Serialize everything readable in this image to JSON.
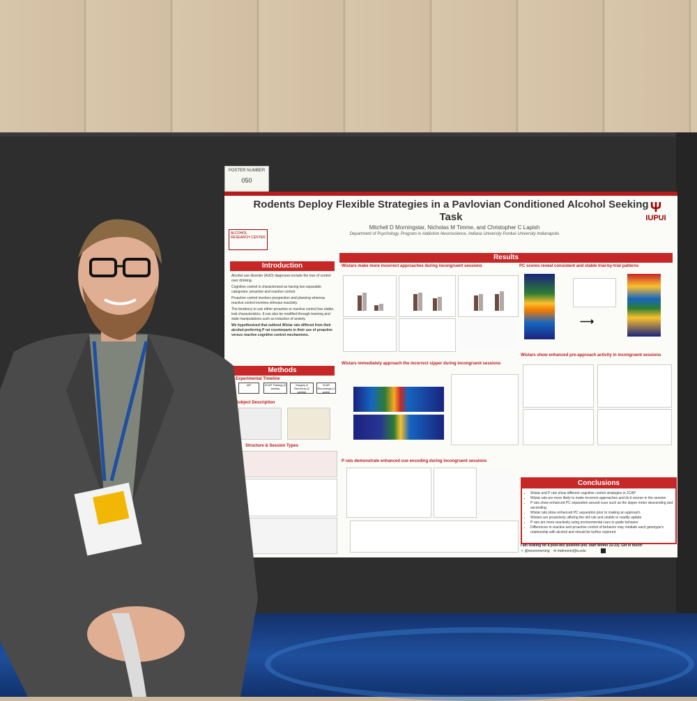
{
  "poster_number": {
    "label": "POSTER NUMBER",
    "value": "050"
  },
  "poster": {
    "title": "Rodents Deploy Flexible Strategies in a Pavlovian Conditioned Alcohol Seeking Task",
    "authors": "Mitchell D Morningstar, Nicholas M Timme, and Christopher C Lapish",
    "department": "Department of Psychology, Program in Addiction Neuroscience, Indiana University Purdue University Indianapolis",
    "logo_right": "IUPUI",
    "logo_left": "ALCOHOL RESEARCH CENTER",
    "sections": {
      "introduction": "Introduction",
      "methods": "Methods",
      "results": "Results",
      "conclusions": "Conclusions"
    },
    "intro_bullets": [
      "Alcohol use disorder (AUD) diagnoses include the loss of control over drinking.",
      "Cognitive control is characterized as having two separable categories: proactive and reactive control.",
      "Proactive control involves prospection and planning whereas reactive control involves stimulus reactivity.",
      "The tendency to use either proactive or reactive control has stable, trait characteristics. It can also be modified through learning and state manipulations such as induction of anxiety.",
      "We hypothesized that outbred Wistar rats differed from their alcohol-preferring P rat counterparts in their use of proactive versus reactive cognitive control mechanisms."
    ],
    "results_headings": [
      "Wistars make more incorrect approaches during incongruent sessions",
      "Wistars immediately approach the incorrect sipper during incongruent sessions",
      "P rats demonstrate enhanced cue encoding during incongruent sessions",
      "PC scores reveal consistent and stable trial-by-trial patterns",
      "Wistars show enhanced pre-approach activity in incongruent sessions"
    ],
    "methods_labels": {
      "timeline": "Experimental Timeline",
      "subject": "Subject Description",
      "structure": "Structure & Session Types",
      "steps": [
        "IAP",
        "2CAP Training (3 weeks)",
        "Surgery & Recovery (2 weeks)",
        "2CAP Recordings (1 week)"
      ]
    },
    "conclusions": [
      "Wistar and P rats show different cognitive control strategies in 2CAP",
      "Wistar rats are more likely to make incorrect approaches and do it sooner in the session",
      "P rats show enhanced PC separation around cues such as the sipper motor descending and ascending.",
      "Wistar rats show enhanced PC separation prior to making an approach.",
      "Wistars are proactively utilizing the old rule and unable to readily update.",
      "P rats are more reactively using environmental cues to guide behavior",
      "Differences in reactive and proactive control of behavior may mediate each genotype's relationship with alcohol and should be further explored"
    ],
    "postdoc": "I am looking for a post-doc position (est. start Winter 22-23). Get in touch!",
    "twitter": "@neuromorning",
    "email": "mdmornin@iu.edu"
  },
  "colors": {
    "accent_red": "#c62828",
    "board": "#2e2e2e",
    "suit": "#4a4a4a",
    "carpet": "#1f4f9c"
  }
}
